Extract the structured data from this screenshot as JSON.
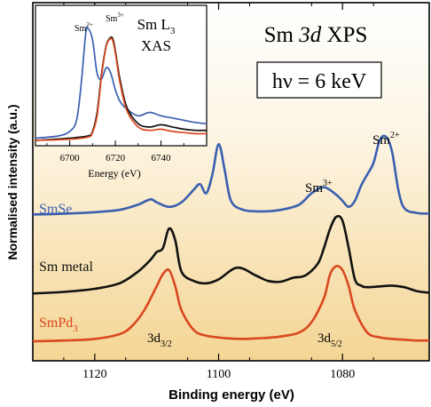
{
  "chart_data": [
    {
      "type": "line",
      "title": "Sm 3d XPS",
      "title_parts": {
        "a": "Sm ",
        "b": "3d",
        "c": " XPS"
      },
      "annotation_box": "hν = 6 keV",
      "xlabel": "Binding energy (eV)",
      "ylabel": "Normalised intensity (a.u.)",
      "xlim": [
        1130,
        1066
      ],
      "x_reversed": true,
      "xticks": [
        1120,
        1100,
        1080
      ],
      "xtick_labels": [
        "1120",
        "1100",
        "1080"
      ],
      "background": "vertical gradient from #ffffff (top) to #f5d79a (bottom)",
      "grid": false,
      "annotations": {
        "sm2": "Sm",
        "sm2_sup": "2+",
        "sm3": "Sm",
        "sm3_sup": "3+",
        "d32": "3d",
        "d32_sub": "3/2",
        "d52": "3d",
        "d52_sub": "5/2"
      },
      "series": [
        {
          "name": "SmSe",
          "label_main": "SmSe",
          "color": "#3a5fb0",
          "x": [
            1130,
            1125,
            1120,
            1116,
            1113,
            1111,
            1110,
            1108,
            1106,
            1104,
            1103,
            1102,
            1101,
            1100,
            1099,
            1098,
            1096,
            1093,
            1090,
            1087,
            1085,
            1083,
            1081,
            1080,
            1079,
            1078,
            1077,
            1076,
            1075,
            1074,
            1073,
            1072,
            1071,
            1070,
            1068,
            1066
          ],
          "y": [
            0.02,
            0.03,
            0.05,
            0.08,
            0.15,
            0.22,
            0.18,
            0.12,
            0.18,
            0.35,
            0.42,
            0.3,
            0.55,
            0.95,
            0.6,
            0.2,
            0.08,
            0.06,
            0.08,
            0.15,
            0.3,
            0.38,
            0.28,
            0.2,
            0.12,
            0.2,
            0.4,
            0.55,
            0.7,
            1.0,
            1.05,
            0.85,
            0.35,
            0.1,
            0.04,
            0.03
          ]
        },
        {
          "name": "Sm metal",
          "label_main": "Sm metal",
          "color": "#111111",
          "x": [
            1130,
            1125,
            1120,
            1116,
            1113,
            1111,
            1110,
            1109,
            1108,
            1107,
            1106,
            1104,
            1102,
            1100,
            1097,
            1094,
            1092,
            1090,
            1088,
            1086,
            1084,
            1083,
            1082,
            1081,
            1080,
            1079,
            1078,
            1077,
            1076,
            1074,
            1072,
            1070,
            1068,
            1066
          ],
          "y": [
            0.02,
            0.04,
            0.08,
            0.15,
            0.3,
            0.45,
            0.55,
            0.6,
            0.85,
            0.7,
            0.3,
            0.18,
            0.15,
            0.2,
            0.35,
            0.25,
            0.18,
            0.17,
            0.22,
            0.25,
            0.4,
            0.6,
            0.85,
            1.0,
            0.95,
            0.6,
            0.2,
            0.12,
            0.1,
            0.11,
            0.12,
            0.1,
            0.05,
            0.03
          ]
        },
        {
          "name": "SmPd",
          "label_main": "SmPd",
          "label_sub": "3",
          "color": "#d9481f",
          "x": [
            1130,
            1125,
            1120,
            1116,
            1114,
            1112,
            1110,
            1109,
            1108,
            1107,
            1106,
            1104,
            1102,
            1099,
            1096,
            1093,
            1090,
            1087,
            1085,
            1083,
            1082,
            1081,
            1080,
            1079,
            1078,
            1076,
            1074,
            1072,
            1070,
            1068,
            1066
          ],
          "y": [
            0.01,
            0.02,
            0.04,
            0.1,
            0.2,
            0.4,
            0.7,
            0.85,
            0.9,
            0.7,
            0.4,
            0.15,
            0.08,
            0.05,
            0.04,
            0.05,
            0.07,
            0.12,
            0.25,
            0.55,
            0.85,
            0.95,
            0.9,
            0.7,
            0.4,
            0.12,
            0.06,
            0.04,
            0.03,
            0.02,
            0.02
          ]
        }
      ]
    },
    {
      "type": "line",
      "title": "Sm L",
      "title_sub": "3",
      "title_line2": "XAS",
      "xlabel": "Energy (eV)",
      "xlim": [
        6685,
        6760
      ],
      "xticks": [
        6700,
        6720,
        6740
      ],
      "xtick_labels": [
        "6700",
        "6720",
        "6740"
      ],
      "annotations": {
        "sm2": "Sm",
        "sm2_sup": "2+",
        "sm3": "Sm",
        "sm3_sup": "3+"
      },
      "series": [
        {
          "color": "#3a5fb0",
          "x": [
            6685,
            6695,
            6700,
            6703,
            6705,
            6707,
            6708,
            6710,
            6712,
            6714,
            6716,
            6718,
            6720,
            6722,
            6725,
            6730,
            6735,
            6740,
            6745,
            6750,
            6755,
            6760
          ],
          "y": [
            0.02,
            0.04,
            0.08,
            0.18,
            0.5,
            0.95,
            1.0,
            0.9,
            0.6,
            0.55,
            0.65,
            0.6,
            0.45,
            0.35,
            0.28,
            0.22,
            0.25,
            0.22,
            0.2,
            0.18,
            0.16,
            0.15
          ]
        },
        {
          "color": "#111111",
          "x": [
            6685,
            6700,
            6708,
            6710,
            6712,
            6714,
            6716,
            6718,
            6719,
            6720,
            6722,
            6725,
            6730,
            6735,
            6740,
            6745,
            6750,
            6755,
            6760
          ],
          "y": [
            0.0,
            0.02,
            0.04,
            0.08,
            0.25,
            0.6,
            0.85,
            0.92,
            0.9,
            0.8,
            0.55,
            0.3,
            0.15,
            0.12,
            0.14,
            0.12,
            0.1,
            0.09,
            0.09
          ]
        },
        {
          "color": "#d9481f",
          "x": [
            6685,
            6700,
            6708,
            6710,
            6712,
            6714,
            6716,
            6718,
            6719,
            6720,
            6722,
            6725,
            6730,
            6735,
            6740,
            6745,
            6750,
            6755,
            6760
          ],
          "y": [
            0.0,
            0.01,
            0.03,
            0.07,
            0.22,
            0.58,
            0.84,
            0.91,
            0.88,
            0.78,
            0.52,
            0.27,
            0.12,
            0.09,
            0.1,
            0.08,
            0.07,
            0.06,
            0.06
          ]
        }
      ]
    }
  ]
}
